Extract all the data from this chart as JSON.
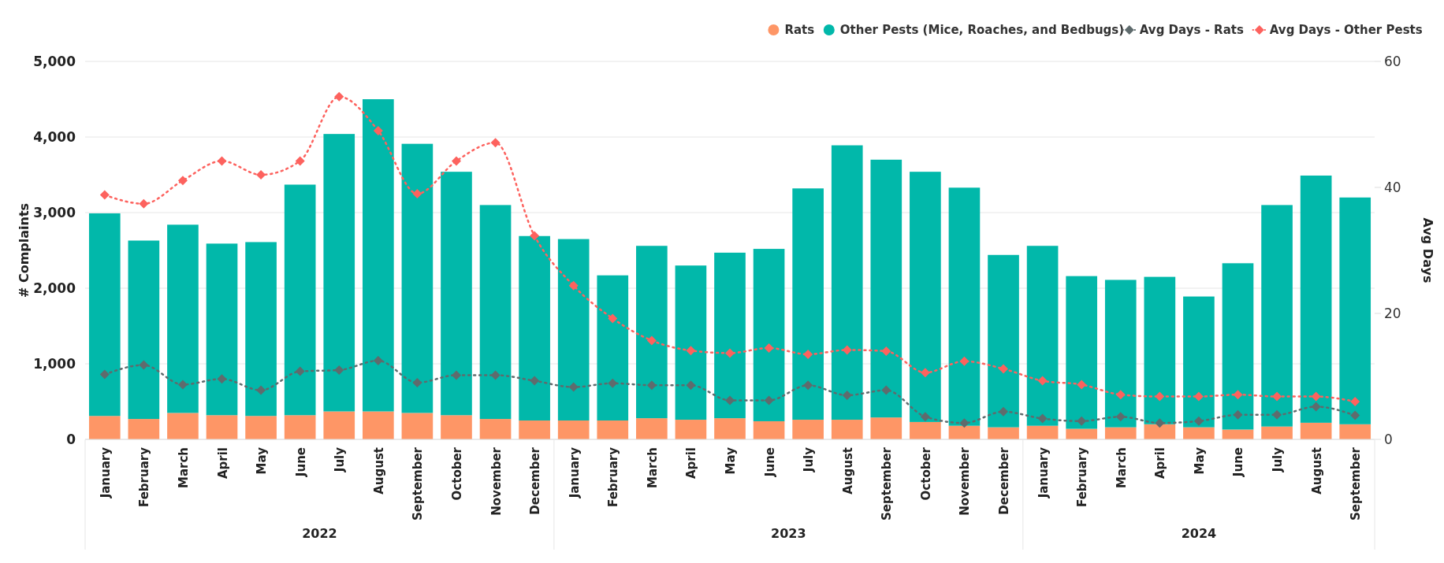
{
  "chart_data": {
    "type": "bar",
    "stacked": true,
    "ylabel": "# Complaints",
    "y2label": "Avg Days",
    "categories": [
      "January",
      "February",
      "March",
      "April",
      "May",
      "June",
      "July",
      "August",
      "September",
      "October",
      "November",
      "December",
      "January",
      "February",
      "March",
      "April",
      "May",
      "June",
      "July",
      "August",
      "September",
      "October",
      "November",
      "December",
      "January",
      "February",
      "March",
      "April",
      "May",
      "June",
      "July",
      "August",
      "September"
    ],
    "annotations": [
      "2022",
      "2023",
      "2024"
    ],
    "series": [
      {
        "name": "Rats",
        "color": "#fe9666",
        "values": [
          310,
          270,
          350,
          320,
          310,
          320,
          370,
          370,
          350,
          320,
          270,
          250,
          250,
          250,
          280,
          260,
          280,
          240,
          260,
          260,
          290,
          230,
          180,
          160,
          180,
          140,
          160,
          200,
          160,
          130,
          170,
          220,
          200
        ]
      },
      {
        "name": "Other Pests (Mice, Roaches, and Bedbugs)",
        "color": "#01b8aa",
        "values": [
          2680,
          2360,
          2490,
          2270,
          2300,
          3050,
          3670,
          4130,
          3560,
          3220,
          2830,
          2440,
          2400,
          1920,
          2280,
          2040,
          2190,
          2280,
          3060,
          3630,
          3410,
          3310,
          3150,
          2280,
          2380,
          2020,
          1950,
          1950,
          1730,
          2200,
          2930,
          3270,
          3000
        ]
      },
      {
        "name": "Avg Days - Rats",
        "type": "line",
        "axis": "y2",
        "color": "#5f6b6d",
        "values": [
          10.3,
          11.8,
          8.7,
          9.6,
          7.8,
          10.8,
          11.0,
          12.5,
          9.0,
          10.2,
          10.2,
          9.3,
          8.3,
          8.9,
          8.6,
          8.6,
          6.2,
          6.2,
          8.6,
          7.0,
          7.8,
          3.6,
          2.6,
          4.4,
          3.3,
          2.9,
          3.6,
          2.6,
          2.9,
          3.9,
          3.9,
          5.2,
          3.8
        ]
      },
      {
        "name": "Avg Days - Other Pests",
        "type": "line",
        "axis": "y2",
        "color": "#fd625e",
        "values": [
          38.8,
          37.4,
          41.1,
          44.2,
          42.0,
          44.2,
          54.4,
          49.0,
          39.0,
          44.2,
          47.1,
          32.3,
          24.4,
          19.2,
          15.7,
          14.1,
          13.7,
          14.5,
          13.5,
          14.2,
          14.0,
          10.6,
          12.4,
          11.2,
          9.3,
          8.7,
          7.1,
          6.8,
          6.8,
          7.1,
          6.8,
          6.8,
          6.0
        ]
      }
    ],
    "ylim": [
      0,
      5000
    ],
    "yticks": [
      {
        "value": 0,
        "label": "0"
      },
      {
        "value": 1000,
        "label": "1,000"
      },
      {
        "value": 2000,
        "label": "2,000"
      },
      {
        "value": 3000,
        "label": "3,000"
      },
      {
        "value": 4000,
        "label": "4,000"
      },
      {
        "value": 5000,
        "label": "5,000"
      }
    ],
    "y2lim": [
      0,
      60
    ],
    "y2ticks": [
      0,
      20,
      40,
      60
    ],
    "grid": "y",
    "legend": "top right",
    "marker": "diamond",
    "line_style": "dotted"
  }
}
